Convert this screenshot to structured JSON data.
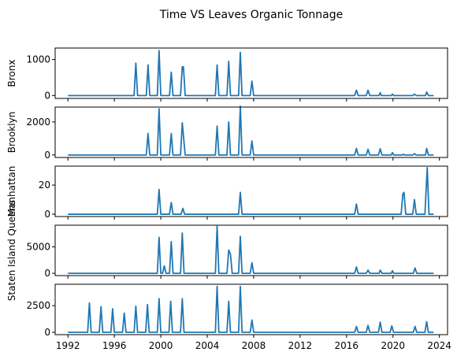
{
  "chart_data": {
    "type": "line",
    "title": "Time VS Leaves Organic Tonnage",
    "xlim": [
      1990.9,
      2024.7
    ],
    "x_ticks": [
      1992,
      1996,
      2000,
      2004,
      2008,
      2012,
      2016,
      2020,
      2024
    ],
    "panels": [
      {
        "ylabel": "Bronx",
        "ylim": [
          -80,
          1320
        ],
        "y_ticks": [
          0,
          1000
        ],
        "points": [
          [
            1992.0,
            0
          ],
          [
            1997.7,
            0
          ],
          [
            1997.85,
            900
          ],
          [
            1998.0,
            0
          ],
          [
            1998.75,
            0
          ],
          [
            1998.9,
            850
          ],
          [
            1999.05,
            0
          ],
          [
            1999.7,
            0
          ],
          [
            1999.85,
            1250
          ],
          [
            2000.0,
            0
          ],
          [
            2000.75,
            0
          ],
          [
            2000.9,
            650
          ],
          [
            2001.05,
            0
          ],
          [
            2001.7,
            0
          ],
          [
            2001.85,
            800
          ],
          [
            2001.95,
            800
          ],
          [
            2002.1,
            0
          ],
          [
            2004.7,
            0
          ],
          [
            2004.85,
            850
          ],
          [
            2005.0,
            0
          ],
          [
            2005.7,
            0
          ],
          [
            2005.85,
            950
          ],
          [
            2006.0,
            0
          ],
          [
            2006.7,
            0
          ],
          [
            2006.85,
            1200
          ],
          [
            2007.0,
            0
          ],
          [
            2007.7,
            0
          ],
          [
            2007.85,
            400
          ],
          [
            2008.0,
            0
          ],
          [
            2016.7,
            0
          ],
          [
            2016.85,
            150
          ],
          [
            2017.0,
            0
          ],
          [
            2017.7,
            0
          ],
          [
            2017.85,
            150
          ],
          [
            2018.0,
            0
          ],
          [
            2018.8,
            0
          ],
          [
            2018.9,
            80
          ],
          [
            2019.0,
            0
          ],
          [
            2019.85,
            0
          ],
          [
            2019.95,
            40
          ],
          [
            2020.05,
            0
          ],
          [
            2021.7,
            0
          ],
          [
            2021.85,
            40
          ],
          [
            2022.0,
            0
          ],
          [
            2022.8,
            0
          ],
          [
            2022.9,
            100
          ],
          [
            2023.05,
            0
          ],
          [
            2023.5,
            0
          ]
        ]
      },
      {
        "ylabel": "Brooklyn",
        "ylim": [
          -150,
          2900
        ],
        "y_ticks": [
          0,
          2000
        ],
        "points": [
          [
            1992.0,
            0
          ],
          [
            1998.75,
            0
          ],
          [
            1998.9,
            1300
          ],
          [
            1999.05,
            0
          ],
          [
            1999.7,
            0
          ],
          [
            1999.85,
            2800
          ],
          [
            2000.0,
            0
          ],
          [
            2000.75,
            0
          ],
          [
            2000.9,
            1300
          ],
          [
            2001.05,
            0
          ],
          [
            2001.7,
            0
          ],
          [
            2001.85,
            1950
          ],
          [
            2002.1,
            0
          ],
          [
            2004.7,
            0
          ],
          [
            2004.85,
            1750
          ],
          [
            2005.0,
            0
          ],
          [
            2005.7,
            0
          ],
          [
            2005.85,
            2000
          ],
          [
            2006.0,
            0
          ],
          [
            2006.7,
            0
          ],
          [
            2006.85,
            2950
          ],
          [
            2007.0,
            0
          ],
          [
            2007.7,
            0
          ],
          [
            2007.85,
            850
          ],
          [
            2008.0,
            0
          ],
          [
            2016.7,
            0
          ],
          [
            2016.85,
            400
          ],
          [
            2017.0,
            0
          ],
          [
            2017.7,
            0
          ],
          [
            2017.85,
            350
          ],
          [
            2018.0,
            0
          ],
          [
            2018.75,
            0
          ],
          [
            2018.9,
            380
          ],
          [
            2019.05,
            0
          ],
          [
            2019.85,
            0
          ],
          [
            2019.95,
            150
          ],
          [
            2020.05,
            0
          ],
          [
            2020.8,
            0
          ],
          [
            2020.9,
            50
          ],
          [
            2021.0,
            0
          ],
          [
            2021.7,
            0
          ],
          [
            2021.85,
            80
          ],
          [
            2022.0,
            0
          ],
          [
            2022.8,
            0
          ],
          [
            2022.9,
            400
          ],
          [
            2023.05,
            0
          ],
          [
            2023.5,
            0
          ]
        ]
      },
      {
        "ylabel": "Manhattan",
        "ylim": [
          -1.6,
          33
        ],
        "y_ticks": [
          0,
          20
        ],
        "points": [
          [
            1992.0,
            0
          ],
          [
            1999.7,
            0
          ],
          [
            1999.85,
            17
          ],
          [
            2000.0,
            0
          ],
          [
            2000.75,
            0
          ],
          [
            2000.9,
            8
          ],
          [
            2001.05,
            0
          ],
          [
            2001.75,
            0
          ],
          [
            2001.9,
            4
          ],
          [
            2002.05,
            0
          ],
          [
            2006.7,
            0
          ],
          [
            2006.85,
            15
          ],
          [
            2007.0,
            0
          ],
          [
            2016.7,
            0
          ],
          [
            2016.85,
            7
          ],
          [
            2017.0,
            0
          ],
          [
            2020.7,
            0
          ],
          [
            2020.85,
            14
          ],
          [
            2020.95,
            15
          ],
          [
            2021.1,
            0
          ],
          [
            2021.7,
            0
          ],
          [
            2021.85,
            10
          ],
          [
            2022.0,
            0
          ],
          [
            2022.75,
            0
          ],
          [
            2022.95,
            32
          ],
          [
            2023.1,
            0
          ],
          [
            2023.5,
            0
          ]
        ]
      },
      {
        "ylabel": "Staten Island Queens",
        "ylim": [
          -430,
          9100
        ],
        "y_ticks": [
          0,
          5000
        ],
        "points": [
          [
            1992.0,
            0
          ],
          [
            1999.7,
            0
          ],
          [
            1999.85,
            6800
          ],
          [
            2000.0,
            0
          ],
          [
            2000.15,
            0
          ],
          [
            2000.3,
            1400
          ],
          [
            2000.45,
            0
          ],
          [
            2000.75,
            0
          ],
          [
            2000.9,
            6000
          ],
          [
            2001.05,
            0
          ],
          [
            2001.7,
            0
          ],
          [
            2001.85,
            7600
          ],
          [
            2002.0,
            0
          ],
          [
            2004.7,
            0
          ],
          [
            2004.85,
            8900
          ],
          [
            2005.0,
            0
          ],
          [
            2005.7,
            0
          ],
          [
            2005.85,
            4400
          ],
          [
            2006.0,
            3600
          ],
          [
            2006.15,
            0
          ],
          [
            2006.7,
            0
          ],
          [
            2006.85,
            7000
          ],
          [
            2007.0,
            0
          ],
          [
            2007.7,
            0
          ],
          [
            2007.85,
            2000
          ],
          [
            2008.0,
            0
          ],
          [
            2016.7,
            0
          ],
          [
            2016.85,
            1200
          ],
          [
            2017.0,
            0
          ],
          [
            2017.7,
            0
          ],
          [
            2017.85,
            600
          ],
          [
            2018.0,
            0
          ],
          [
            2018.8,
            0
          ],
          [
            2018.9,
            600
          ],
          [
            2019.05,
            0
          ],
          [
            2019.85,
            0
          ],
          [
            2019.95,
            500
          ],
          [
            2020.05,
            0
          ],
          [
            2021.75,
            0
          ],
          [
            2021.9,
            1000
          ],
          [
            2022.05,
            0
          ],
          [
            2023.5,
            0
          ]
        ]
      },
      {
        "ylabel": "",
        "ylim": [
          -220,
          4500
        ],
        "y_ticks": [
          0,
          2500
        ],
        "points": [
          [
            1992.0,
            0
          ],
          [
            1993.7,
            0
          ],
          [
            1993.85,
            2750
          ],
          [
            1994.0,
            0
          ],
          [
            1994.7,
            0
          ],
          [
            1994.85,
            2400
          ],
          [
            1995.0,
            0
          ],
          [
            1995.7,
            0
          ],
          [
            1995.85,
            2200
          ],
          [
            1996.0,
            0
          ],
          [
            1996.7,
            0
          ],
          [
            1996.85,
            1800
          ],
          [
            1997.0,
            0
          ],
          [
            1997.7,
            0
          ],
          [
            1997.85,
            2450
          ],
          [
            1998.0,
            0
          ],
          [
            1998.7,
            0
          ],
          [
            1998.85,
            2600
          ],
          [
            1999.0,
            0
          ],
          [
            1999.7,
            0
          ],
          [
            1999.85,
            3150
          ],
          [
            2000.0,
            0
          ],
          [
            2000.7,
            0
          ],
          [
            2000.85,
            2900
          ],
          [
            2001.0,
            0
          ],
          [
            2001.7,
            0
          ],
          [
            2001.85,
            3150
          ],
          [
            2002.0,
            0
          ],
          [
            2004.7,
            0
          ],
          [
            2004.85,
            4300
          ],
          [
            2005.0,
            0
          ],
          [
            2005.7,
            0
          ],
          [
            2005.85,
            2900
          ],
          [
            2006.0,
            0
          ],
          [
            2006.7,
            0
          ],
          [
            2006.85,
            4300
          ],
          [
            2007.0,
            0
          ],
          [
            2007.7,
            0
          ],
          [
            2007.85,
            1150
          ],
          [
            2008.0,
            0
          ],
          [
            2016.7,
            0
          ],
          [
            2016.85,
            550
          ],
          [
            2017.0,
            0
          ],
          [
            2017.7,
            0
          ],
          [
            2017.85,
            650
          ],
          [
            2018.0,
            0
          ],
          [
            2018.75,
            0
          ],
          [
            2018.9,
            950
          ],
          [
            2019.05,
            0
          ],
          [
            2019.75,
            0
          ],
          [
            2019.9,
            600
          ],
          [
            2020.05,
            0
          ],
          [
            2021.75,
            0
          ],
          [
            2021.9,
            550
          ],
          [
            2022.05,
            0
          ],
          [
            2022.75,
            0
          ],
          [
            2022.9,
            1000
          ],
          [
            2023.05,
            0
          ],
          [
            2023.5,
            0
          ]
        ]
      }
    ]
  }
}
